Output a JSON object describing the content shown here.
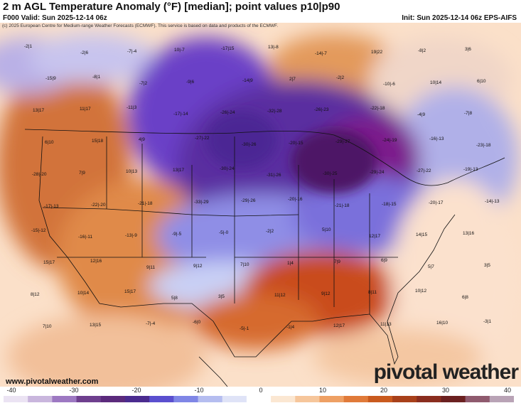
{
  "header": {
    "title": "2 m AGL Temperature Anomaly (°F) [median]; point values p10|p90",
    "valid": "F000 Valid: Sun 2025-12-14 06z",
    "init": "Init: Sun 2025-12-14 06z EPS-AIFS"
  },
  "copyright": "(c) 2025 European Centre for Medium-range Weather Forecasts (ECMWF). This service is based on data and products of the ECMWF.",
  "website": "www.pivotalweather.com",
  "brand": "pivotal weather",
  "colorbar": {
    "ticks": [
      "-40",
      "-30",
      "-20",
      "-10",
      "0",
      "10",
      "20",
      "30",
      "40"
    ],
    "colors": [
      "#ebe3f3",
      "#c9b6dd",
      "#9d78c2",
      "#6e3f8e",
      "#5b2a7c",
      "#4a2b8f",
      "#5a4fcf",
      "#7f86e6",
      "#b5bdf0",
      "#dfe3f7",
      "#ffffff",
      "#fbe7d2",
      "#f6c69b",
      "#eea064",
      "#e07a39",
      "#c95a1e",
      "#a8401a",
      "#8a2d1e",
      "#6b2020",
      "#8f5a6e",
      "#b9a3b6"
    ]
  },
  "station_values": [
    "-2|1",
    "-2|6",
    "-7|-4",
    "10|-7",
    "-17|15",
    "13|-8",
    "-14|-7",
    "19|22",
    "-8|2",
    "3|6",
    "-15|9",
    "-8|1",
    "-7|2",
    "-9|6",
    "-14|9",
    "2|7",
    "-2|2",
    "-10|-6",
    "10|14",
    "6|10",
    "13|17",
    "11|17",
    "-11|3",
    "-17|-14",
    "-26|-24",
    "-32|-28",
    "-26|-23",
    "-22|-18",
    "-4|9",
    "-7|8",
    "6|10",
    "15|18",
    "4|9",
    "-27|-22",
    "-30|-26",
    "-20|-15",
    "-29|-27",
    "-24|-19",
    "-16|-13",
    "-23|-18",
    "-28|-20",
    "7|9",
    "10|13",
    "13|17",
    "-30|-24",
    "-31|-26",
    "-30|-25",
    "-29|-24",
    "-27|-22",
    "-19|-13",
    "-17|-13",
    "-22|-20",
    "-21|-18",
    "-33|-29",
    "-29|-26",
    "-20|-16",
    "-21|-18",
    "-18|-15",
    "-20|-17",
    "-14|-13",
    "-15|-12",
    "-16|-11",
    "-13|-9",
    "-9|-5",
    "-5|-0",
    "-2|2",
    "5|10",
    "12|17",
    "14|15",
    "13|16",
    "15|17",
    "12|16",
    "9|11",
    "9|12",
    "7|10",
    "1|4",
    "7|9",
    "6|9",
    "5|7",
    "3|5",
    "8|12",
    "10|14",
    "15|17",
    "5|8",
    "3|5",
    "11|12",
    "9|12",
    "8|11",
    "10|12",
    "6|8",
    "7|10",
    "13|15",
    "-7|-4",
    "-6|0",
    "-5|-1",
    "-1|4",
    "12|17",
    "11|13",
    "16|10",
    "-3|1"
  ]
}
